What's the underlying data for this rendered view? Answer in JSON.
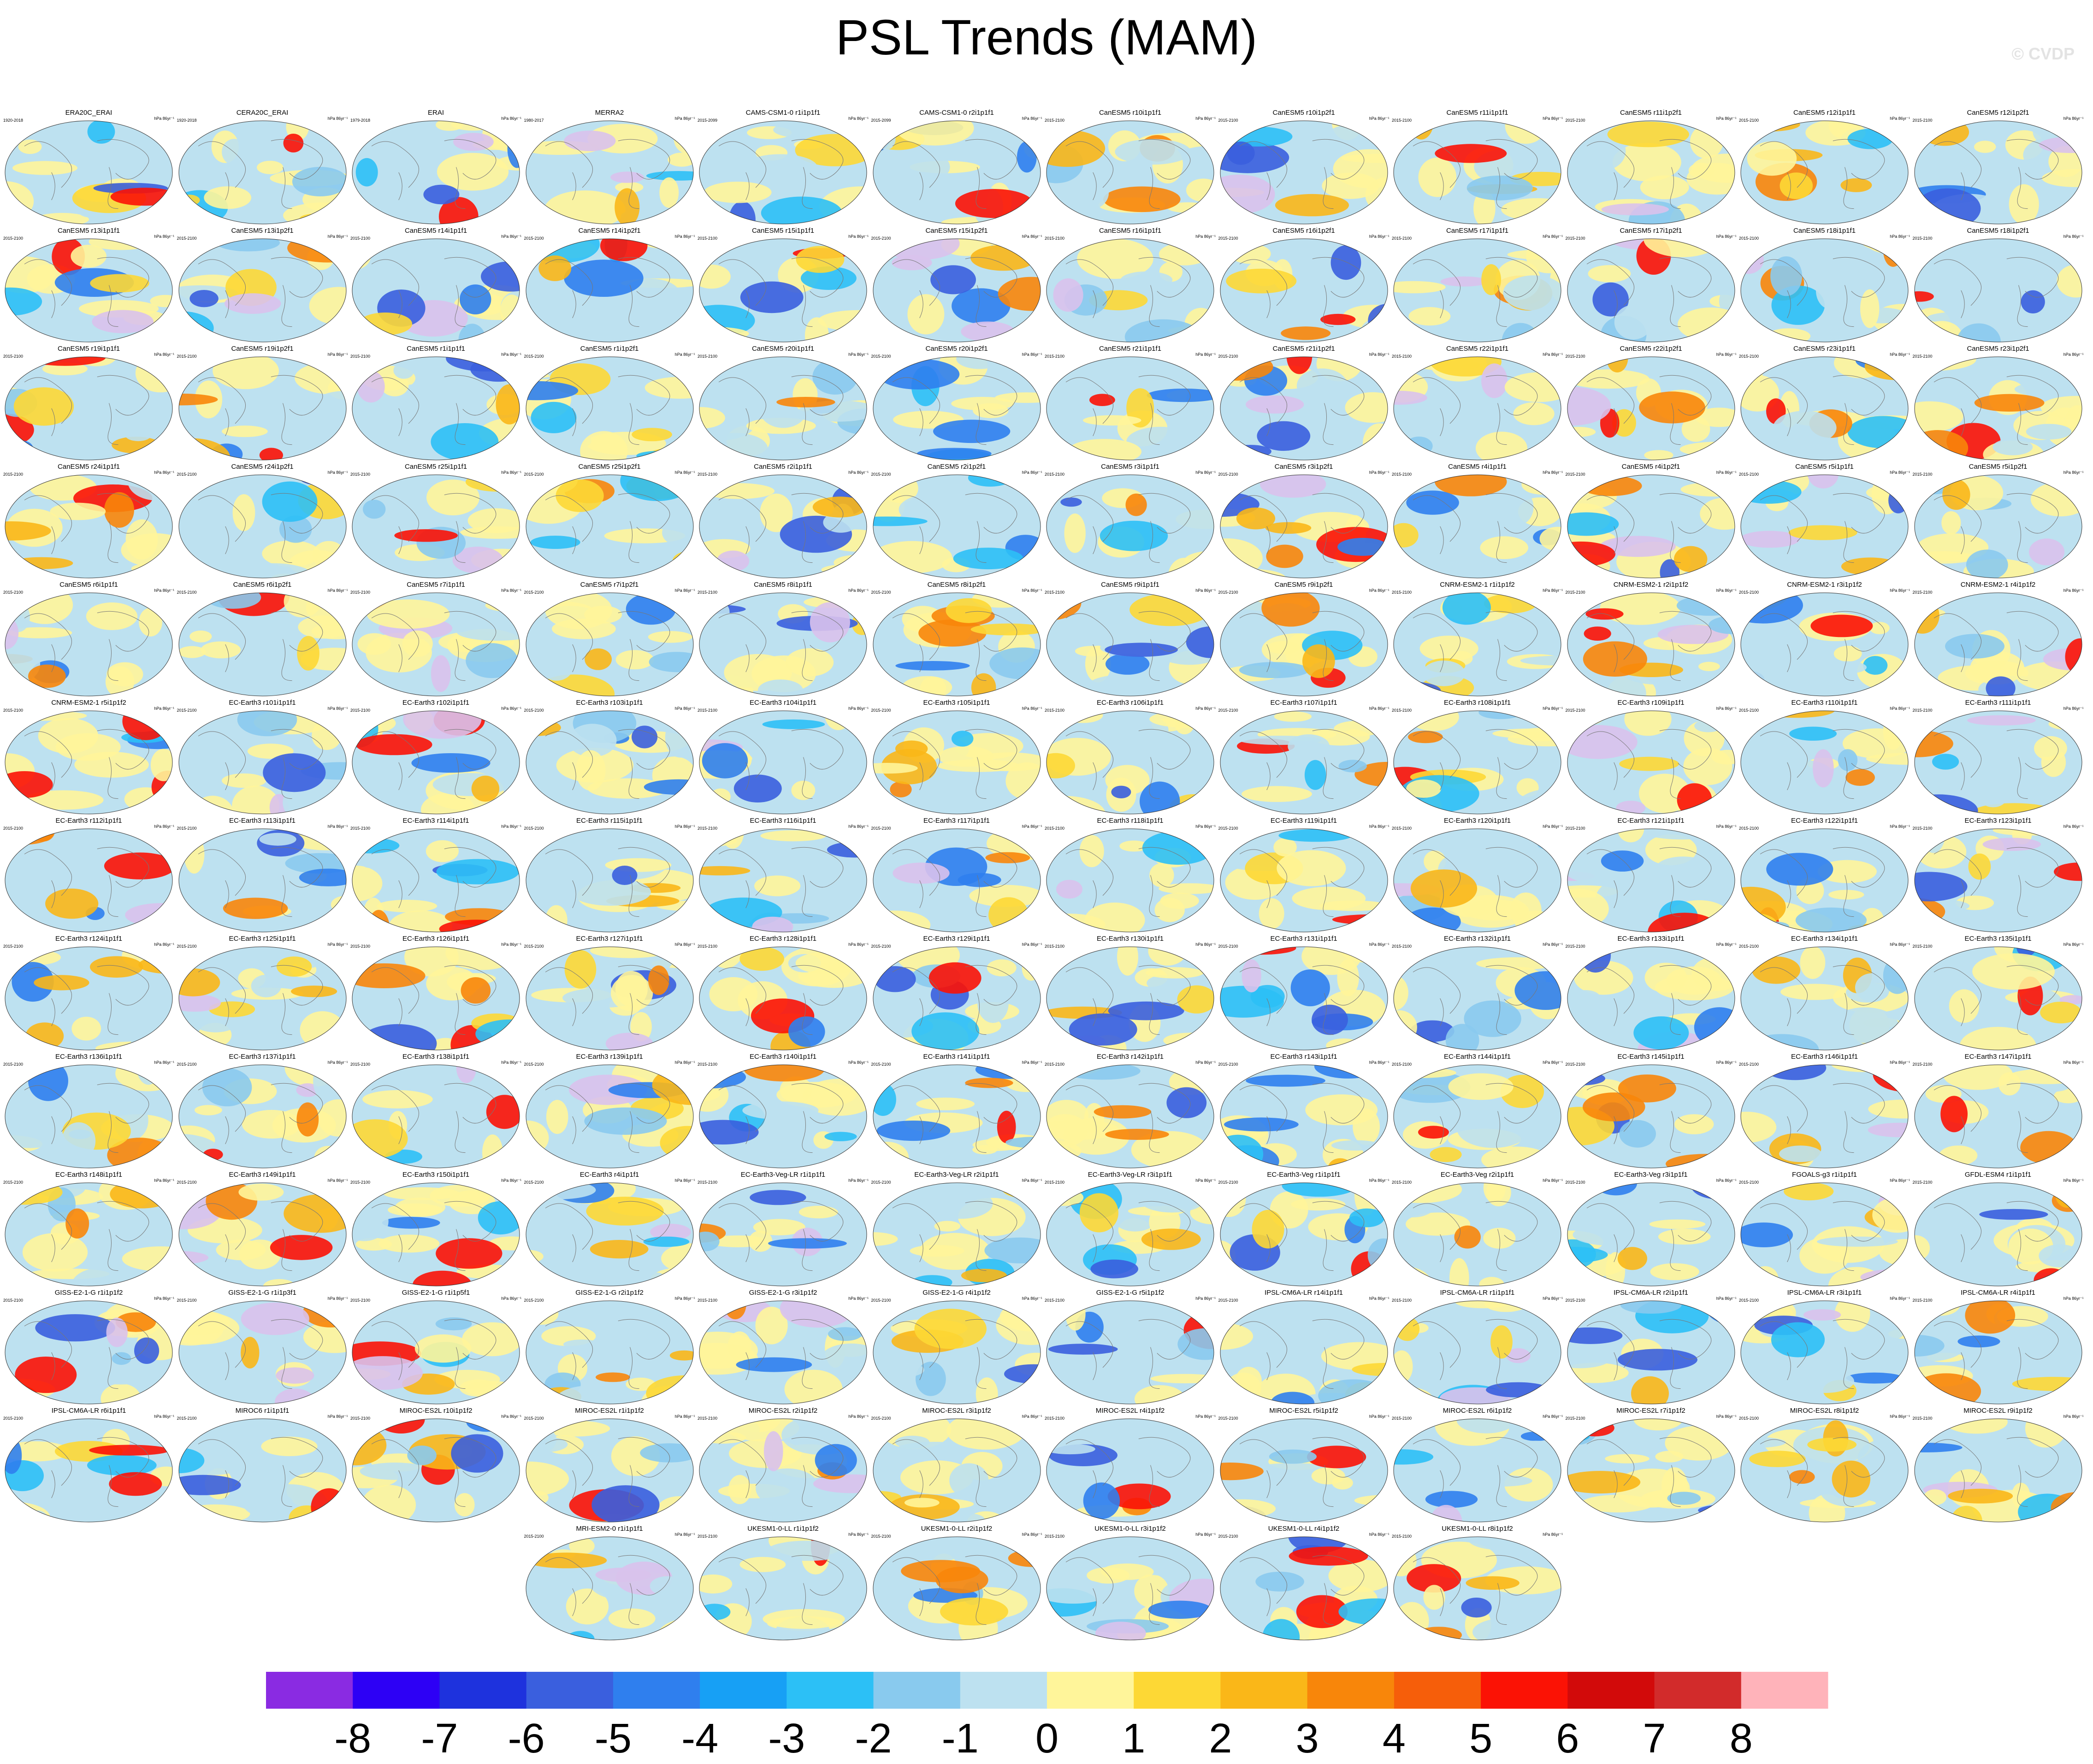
{
  "title": "PSL Trends (MAM)",
  "watermark": "© CVDP",
  "units": "hPa 86yr⁻¹",
  "colorbar": {
    "colors": [
      "#8a2be2",
      "#2d00f5",
      "#1e32dd",
      "#3a5fde",
      "#2f7fee",
      "#17a0f5",
      "#2cc0f6",
      "#89caee",
      "#bde1f0",
      "#fff59a",
      "#fdd835",
      "#fab718",
      "#f8860a",
      "#f65e0a",
      "#fb1205",
      "#d20a0a",
      "#d22b2b",
      "#ffb3ba"
    ],
    "tick_labels": [
      "-8",
      "-7",
      "-6",
      "-5",
      "-4",
      "-3",
      "-2",
      "-1",
      "0",
      "1",
      "2",
      "3",
      "4",
      "5",
      "6",
      "7",
      "8"
    ]
  },
  "chart_data": {
    "type": "map-grid",
    "title": "PSL Trends (MAM)",
    "colorbar_levels": [
      -8,
      -7,
      -6,
      -5,
      -4,
      -3,
      -2,
      -1,
      0,
      1,
      2,
      3,
      4,
      5,
      6,
      7,
      8
    ],
    "panels": [
      {
        "name": "ERA20C_ERAI",
        "period": "1920-2018"
      },
      {
        "name": "CERA20C_ERAI",
        "period": "1920-2018"
      },
      {
        "name": "ERAI",
        "period": "1979-2018"
      },
      {
        "name": "MERRA2",
        "period": "1980-2017"
      },
      {
        "name": "CAMS-CSM1-0 r1i1p1f1",
        "period": "2015-2099"
      },
      {
        "name": "CAMS-CSM1-0 r2i1p1f1",
        "period": "2015-2099"
      },
      {
        "name": "CanESM5 r10i1p1f1",
        "period": "2015-2100"
      },
      {
        "name": "CanESM5 r10i1p2f1",
        "period": "2015-2100"
      },
      {
        "name": "CanESM5 r11i1p1f1",
        "period": "2015-2100"
      },
      {
        "name": "CanESM5 r11i1p2f1",
        "period": "2015-2100"
      },
      {
        "name": "CanESM5 r12i1p1f1",
        "period": "2015-2100"
      },
      {
        "name": "CanESM5 r12i1p2f1",
        "period": "2015-2100"
      },
      {
        "name": "CanESM5 r13i1p1f1",
        "period": "2015-2100"
      },
      {
        "name": "CanESM5 r13i1p2f1",
        "period": "2015-2100"
      },
      {
        "name": "CanESM5 r14i1p1f1",
        "period": "2015-2100"
      },
      {
        "name": "CanESM5 r14i1p2f1",
        "period": "2015-2100"
      },
      {
        "name": "CanESM5 r15i1p1f1",
        "period": "2015-2100"
      },
      {
        "name": "CanESM5 r15i1p2f1",
        "period": "2015-2100"
      },
      {
        "name": "CanESM5 r16i1p1f1",
        "period": "2015-2100"
      },
      {
        "name": "CanESM5 r16i1p2f1",
        "period": "2015-2100"
      },
      {
        "name": "CanESM5 r17i1p1f1",
        "period": "2015-2100"
      },
      {
        "name": "CanESM5 r17i1p2f1",
        "period": "2015-2100"
      },
      {
        "name": "CanESM5 r18i1p1f1",
        "period": "2015-2100"
      },
      {
        "name": "CanESM5 r18i1p2f1",
        "period": "2015-2100"
      },
      {
        "name": "CanESM5 r19i1p1f1",
        "period": "2015-2100"
      },
      {
        "name": "CanESM5 r19i1p2f1",
        "period": "2015-2100"
      },
      {
        "name": "CanESM5 r1i1p1f1",
        "period": "2015-2100"
      },
      {
        "name": "CanESM5 r1i1p2f1",
        "period": "2015-2100"
      },
      {
        "name": "CanESM5 r20i1p1f1",
        "period": "2015-2100"
      },
      {
        "name": "CanESM5 r20i1p2f1",
        "period": "2015-2100"
      },
      {
        "name": "CanESM5 r21i1p1f1",
        "period": "2015-2100"
      },
      {
        "name": "CanESM5 r21i1p2f1",
        "period": "2015-2100"
      },
      {
        "name": "CanESM5 r22i1p1f1",
        "period": "2015-2100"
      },
      {
        "name": "CanESM5 r22i1p2f1",
        "period": "2015-2100"
      },
      {
        "name": "CanESM5 r23i1p1f1",
        "period": "2015-2100"
      },
      {
        "name": "CanESM5 r23i1p2f1",
        "period": "2015-2100"
      },
      {
        "name": "CanESM5 r24i1p1f1",
        "period": "2015-2100"
      },
      {
        "name": "CanESM5 r24i1p2f1",
        "period": "2015-2100"
      },
      {
        "name": "CanESM5 r25i1p1f1",
        "period": "2015-2100"
      },
      {
        "name": "CanESM5 r25i1p2f1",
        "period": "2015-2100"
      },
      {
        "name": "CanESM5 r2i1p1f1",
        "period": "2015-2100"
      },
      {
        "name": "CanESM5 r2i1p2f1",
        "period": "2015-2100"
      },
      {
        "name": "CanESM5 r3i1p1f1",
        "period": "2015-2100"
      },
      {
        "name": "CanESM5 r3i1p2f1",
        "period": "2015-2100"
      },
      {
        "name": "CanESM5 r4i1p1f1",
        "period": "2015-2100"
      },
      {
        "name": "CanESM5 r4i1p2f1",
        "period": "2015-2100"
      },
      {
        "name": "CanESM5 r5i1p1f1",
        "period": "2015-2100"
      },
      {
        "name": "CanESM5 r5i1p2f1",
        "period": "2015-2100"
      },
      {
        "name": "CanESM5 r6i1p1f1",
        "period": "2015-2100"
      },
      {
        "name": "CanESM5 r6i1p2f1",
        "period": "2015-2100"
      },
      {
        "name": "CanESM5 r7i1p1f1",
        "period": "2015-2100"
      },
      {
        "name": "CanESM5 r7i1p2f1",
        "period": "2015-2100"
      },
      {
        "name": "CanESM5 r8i1p1f1",
        "period": "2015-2100"
      },
      {
        "name": "CanESM5 r8i1p2f1",
        "period": "2015-2100"
      },
      {
        "name": "CanESM5 r9i1p1f1",
        "period": "2015-2100"
      },
      {
        "name": "CanESM5 r9i1p2f1",
        "period": "2015-2100"
      },
      {
        "name": "CNRM-ESM2-1 r1i1p1f2",
        "period": "2015-2100"
      },
      {
        "name": "CNRM-ESM2-1 r2i1p1f2",
        "period": "2015-2100"
      },
      {
        "name": "CNRM-ESM2-1 r3i1p1f2",
        "period": "2015-2100"
      },
      {
        "name": "CNRM-ESM2-1 r4i1p1f2",
        "period": "2015-2100"
      },
      {
        "name": "CNRM-ESM2-1 r5i1p1f2",
        "period": "2015-2100"
      },
      {
        "name": "EC-Earth3 r101i1p1f1",
        "period": "2015-2100"
      },
      {
        "name": "EC-Earth3 r102i1p1f1",
        "period": "2015-2100"
      },
      {
        "name": "EC-Earth3 r103i1p1f1",
        "period": "2015-2100"
      },
      {
        "name": "EC-Earth3 r104i1p1f1",
        "period": "2015-2100"
      },
      {
        "name": "EC-Earth3 r105i1p1f1",
        "period": "2015-2100"
      },
      {
        "name": "EC-Earth3 r106i1p1f1",
        "period": "2015-2100"
      },
      {
        "name": "EC-Earth3 r107i1p1f1",
        "period": "2015-2100"
      },
      {
        "name": "EC-Earth3 r108i1p1f1",
        "period": "2015-2100"
      },
      {
        "name": "EC-Earth3 r109i1p1f1",
        "period": "2015-2100"
      },
      {
        "name": "EC-Earth3 r110i1p1f1",
        "period": "2015-2100"
      },
      {
        "name": "EC-Earth3 r111i1p1f1",
        "period": "2015-2100"
      },
      {
        "name": "EC-Earth3 r112i1p1f1",
        "period": "2015-2100"
      },
      {
        "name": "EC-Earth3 r113i1p1f1",
        "period": "2015-2100"
      },
      {
        "name": "EC-Earth3 r114i1p1f1",
        "period": "2015-2100"
      },
      {
        "name": "EC-Earth3 r115i1p1f1",
        "period": "2015-2100"
      },
      {
        "name": "EC-Earth3 r116i1p1f1",
        "period": "2015-2100"
      },
      {
        "name": "EC-Earth3 r117i1p1f1",
        "period": "2015-2100"
      },
      {
        "name": "EC-Earth3 r118i1p1f1",
        "period": "2015-2100"
      },
      {
        "name": "EC-Earth3 r119i1p1f1",
        "period": "2015-2100"
      },
      {
        "name": "EC-Earth3 r120i1p1f1",
        "period": "2015-2100"
      },
      {
        "name": "EC-Earth3 r121i1p1f1",
        "period": "2015-2100"
      },
      {
        "name": "EC-Earth3 r122i1p1f1",
        "period": "2015-2100"
      },
      {
        "name": "EC-Earth3 r123i1p1f1",
        "period": "2015-2100"
      },
      {
        "name": "EC-Earth3 r124i1p1f1",
        "period": "2015-2100"
      },
      {
        "name": "EC-Earth3 r125i1p1f1",
        "period": "2015-2100"
      },
      {
        "name": "EC-Earth3 r126i1p1f1",
        "period": "2015-2100"
      },
      {
        "name": "EC-Earth3 r127i1p1f1",
        "period": "2015-2100"
      },
      {
        "name": "EC-Earth3 r128i1p1f1",
        "period": "2015-2100"
      },
      {
        "name": "EC-Earth3 r129i1p1f1",
        "period": "2015-2100"
      },
      {
        "name": "EC-Earth3 r130i1p1f1",
        "period": "2015-2100"
      },
      {
        "name": "EC-Earth3 r131i1p1f1",
        "period": "2015-2100"
      },
      {
        "name": "EC-Earth3 r132i1p1f1",
        "period": "2015-2100"
      },
      {
        "name": "EC-Earth3 r133i1p1f1",
        "period": "2015-2100"
      },
      {
        "name": "EC-Earth3 r134i1p1f1",
        "period": "2015-2100"
      },
      {
        "name": "EC-Earth3 r135i1p1f1",
        "period": "2015-2100"
      },
      {
        "name": "EC-Earth3 r136i1p1f1",
        "period": "2015-2100"
      },
      {
        "name": "EC-Earth3 r137i1p1f1",
        "period": "2015-2100"
      },
      {
        "name": "EC-Earth3 r138i1p1f1",
        "period": "2015-2100"
      },
      {
        "name": "EC-Earth3 r139i1p1f1",
        "period": "2015-2100"
      },
      {
        "name": "EC-Earth3 r140i1p1f1",
        "period": "2015-2100"
      },
      {
        "name": "EC-Earth3 r141i1p1f1",
        "period": "2015-2100"
      },
      {
        "name": "EC-Earth3 r142i1p1f1",
        "period": "2015-2100"
      },
      {
        "name": "EC-Earth3 r143i1p1f1",
        "period": "2015-2100"
      },
      {
        "name": "EC-Earth3 r144i1p1f1",
        "period": "2015-2100"
      },
      {
        "name": "EC-Earth3 r145i1p1f1",
        "period": "2015-2100"
      },
      {
        "name": "EC-Earth3 r146i1p1f1",
        "period": "2015-2100"
      },
      {
        "name": "EC-Earth3 r147i1p1f1",
        "period": "2015-2100"
      },
      {
        "name": "EC-Earth3 r148i1p1f1",
        "period": "2015-2100"
      },
      {
        "name": "EC-Earth3 r149i1p1f1",
        "period": "2015-2100"
      },
      {
        "name": "EC-Earth3 r150i1p1f1",
        "period": "2015-2100"
      },
      {
        "name": "EC-Earth3 r4i1p1f1",
        "period": "2015-2100"
      },
      {
        "name": "EC-Earth3-Veg-LR r1i1p1f1",
        "period": "2015-2100"
      },
      {
        "name": "EC-Earth3-Veg-LR r2i1p1f1",
        "period": "2015-2100"
      },
      {
        "name": "EC-Earth3-Veg-LR r3i1p1f1",
        "period": "2015-2100"
      },
      {
        "name": "EC-Earth3-Veg r1i1p1f1",
        "period": "2015-2100"
      },
      {
        "name": "EC-Earth3-Veg r2i1p1f1",
        "period": "2015-2100"
      },
      {
        "name": "EC-Earth3-Veg r3i1p1f1",
        "period": "2015-2100"
      },
      {
        "name": "FGOALS-g3 r1i1p1f1",
        "period": "2015-2100"
      },
      {
        "name": "GFDL-ESM4 r1i1p1f1",
        "period": "2015-2100"
      },
      {
        "name": "GISS-E2-1-G r1i1p1f2",
        "period": "2015-2100"
      },
      {
        "name": "GISS-E2-1-G r1i1p3f1",
        "period": "2015-2100"
      },
      {
        "name": "GISS-E2-1-G r1i1p5f1",
        "period": "2015-2100"
      },
      {
        "name": "GISS-E2-1-G r2i1p1f2",
        "period": "2015-2100"
      },
      {
        "name": "GISS-E2-1-G r3i1p1f2",
        "period": "2015-2100"
      },
      {
        "name": "GISS-E2-1-G r4i1p1f2",
        "period": "2015-2100"
      },
      {
        "name": "GISS-E2-1-G r5i1p1f2",
        "period": "2015-2100"
      },
      {
        "name": "IPSL-CM6A-LR r14i1p1f1",
        "period": "2015-2100"
      },
      {
        "name": "IPSL-CM6A-LR r1i1p1f1",
        "period": "2015-2100"
      },
      {
        "name": "IPSL-CM6A-LR r2i1p1f1",
        "period": "2015-2100"
      },
      {
        "name": "IPSL-CM6A-LR r3i1p1f1",
        "period": "2015-2100"
      },
      {
        "name": "IPSL-CM6A-LR r4i1p1f1",
        "period": "2015-2100"
      },
      {
        "name": "IPSL-CM6A-LR r6i1p1f1",
        "period": "2015-2100"
      },
      {
        "name": "MIROC6 r1i1p1f1",
        "period": "2015-2100"
      },
      {
        "name": "MIROC-ES2L r10i1p1f2",
        "period": "2015-2100"
      },
      {
        "name": "MIROC-ES2L r1i1p1f2",
        "period": "2015-2100"
      },
      {
        "name": "MIROC-ES2L r2i1p1f2",
        "period": "2015-2100"
      },
      {
        "name": "MIROC-ES2L r3i1p1f2",
        "period": "2015-2100"
      },
      {
        "name": "MIROC-ES2L r4i1p1f2",
        "period": "2015-2100"
      },
      {
        "name": "MIROC-ES2L r5i1p1f2",
        "period": "2015-2100"
      },
      {
        "name": "MIROC-ES2L r6i1p1f2",
        "period": "2015-2100"
      },
      {
        "name": "MIROC-ES2L r7i1p1f2",
        "period": "2015-2100"
      },
      {
        "name": "MIROC-ES2L r8i1p1f2",
        "period": "2015-2100"
      },
      {
        "name": "MIROC-ES2L r9i1p1f2",
        "period": "2015-2100"
      },
      {
        "name": "MRI-ESM2-0 r1i1p1f1",
        "period": "2015-2100"
      },
      {
        "name": "UKESM1-0-LL r1i1p1f2",
        "period": "2015-2100"
      },
      {
        "name": "UKESM1-0-LL r2i1p1f2",
        "period": "2015-2100"
      },
      {
        "name": "UKESM1-0-LL r3i1p1f2",
        "period": "2015-2100"
      },
      {
        "name": "UKESM1-0-LL r4i1p1f2",
        "period": "2015-2100"
      },
      {
        "name": "UKESM1-0-LL r8i1p1f2",
        "period": "2015-2100"
      }
    ]
  }
}
